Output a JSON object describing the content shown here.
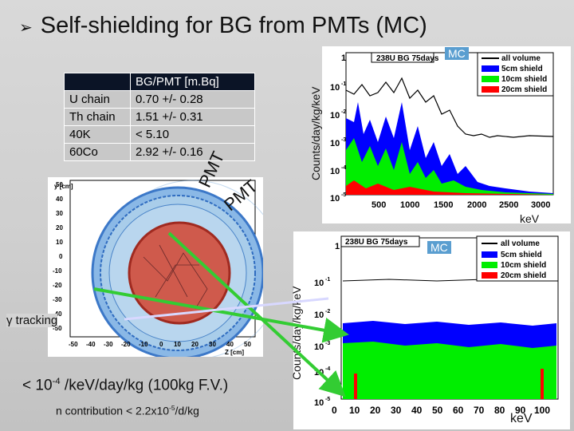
{
  "title": "Self-shielding for BG from PMTs (MC)",
  "table": {
    "header": "BG/PMT [m.Bq]",
    "rows": [
      {
        "source": "U chain",
        "value": "0.70 +/- 0.28"
      },
      {
        "source": "Th chain",
        "value": "1.51 +/- 0.31"
      },
      {
        "source": "40K",
        "value": "< 5.10"
      },
      {
        "source": "60Co",
        "value": "2.92 +/- 0.16"
      }
    ]
  },
  "pmt_label": "PMT",
  "detector": {
    "gamma_label": "γ tracking",
    "y_axis": "y [cm]",
    "x_axis": "Z [cm]",
    "y_ticks": [
      "50",
      "40",
      "30",
      "20",
      "10",
      "0",
      "-10",
      "-20",
      "-30",
      "-40",
      "-50"
    ],
    "x_ticks": [
      "-50",
      "-40",
      "-30",
      "-20",
      "-10",
      "0",
      "10",
      "20",
      "30",
      "40",
      "50"
    ]
  },
  "plot_top": {
    "hist_title": "238U BG 75days",
    "mc": "MC",
    "ylabel": "Counts/day/kg/keV",
    "xunit": "keV",
    "x_ticks": [
      "500",
      "1000",
      "1500",
      "2000",
      "2500",
      "3000"
    ],
    "y_ticks": [
      "1",
      "10",
      "10",
      "10",
      "10",
      "10"
    ],
    "y_exp": [
      "",
      "-1",
      "-2",
      "-3",
      "-4",
      "-5"
    ],
    "legend": [
      "all volume",
      "5cm shield",
      "10cm shield",
      "20cm shield"
    ]
  },
  "plot_bottom": {
    "hist_title": "238U BG 75days",
    "mc": "MC",
    "ylabel": "Counts/day/kg/keV",
    "xunit": "keV",
    "x_ticks": [
      "0",
      "10",
      "20",
      "30",
      "40",
      "50",
      "60",
      "70",
      "80",
      "90",
      "100"
    ],
    "y_ticks": [
      "1",
      "10",
      "10",
      "10",
      "10",
      "10"
    ],
    "y_exp": [
      "",
      "-1",
      "-2",
      "-3",
      "-4",
      "-5"
    ],
    "legend": [
      "all volume",
      "5cm shield",
      "10cm shield",
      "20cm shield"
    ]
  },
  "footer": {
    "limit_pre": "< 10",
    "limit_exp": "-4",
    "limit_post": " /keV/day/kg (100kg F.V.)",
    "n_pre": "n contribution < 2.2x10",
    "n_exp": "-5",
    "n_post": "/d/kg"
  },
  "colors": {
    "all": "#000000",
    "s5": "#0000ff",
    "s10": "#00ee00",
    "s20": "#ff0000",
    "mc_badge": "#5a9ed0",
    "arrow": "#33cc33",
    "table_header": "#0b1426"
  }
}
